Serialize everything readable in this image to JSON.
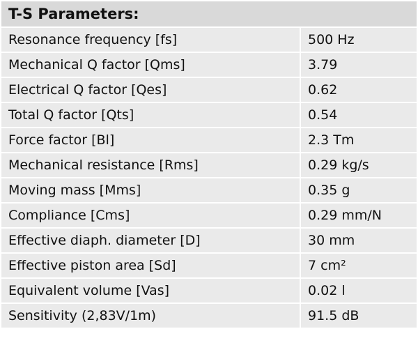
{
  "table": {
    "title": "T-S Parameters:",
    "rows": [
      [
        "Resonance frequency [fs]",
        "500 Hz"
      ],
      [
        "Mechanical Q factor [Qms]",
        "3.79"
      ],
      [
        "Electrical Q factor [Qes]",
        "0.62"
      ],
      [
        "Total Q factor [Qts]",
        "0.54"
      ],
      [
        "Force factor [Bl]",
        "2.3 Tm"
      ],
      [
        "Mechanical resistance [Rms]",
        "0.29 kg/s"
      ],
      [
        "Moving mass [Mms]",
        "0.35 g"
      ],
      [
        "Compliance [Cms]",
        "0.29 mm/N"
      ],
      [
        "Effective diaph. diameter [D]",
        "30 mm"
      ],
      [
        "Effective piston area [Sd]",
        "7 cm²"
      ],
      [
        "Equivalent volume [Vas]",
        "0.02 l"
      ],
      [
        "Sensitivity (2,83V/1m)",
        "91.5 dB"
      ]
    ]
  }
}
